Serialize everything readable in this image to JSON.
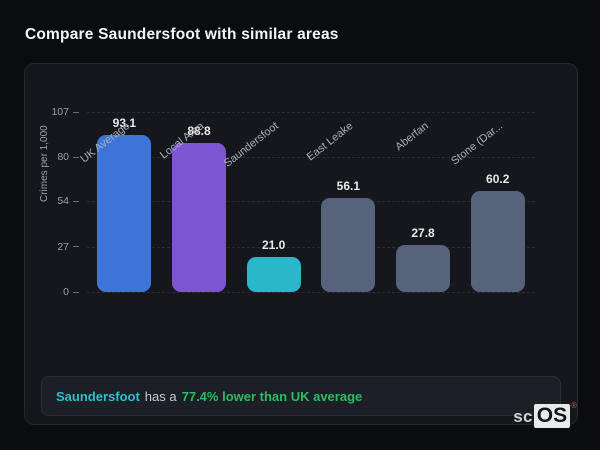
{
  "header": {
    "title": "Compare Saundersfoot with similar areas"
  },
  "chart_data": {
    "type": "bar",
    "title": "Compare Saundersfoot with similar areas",
    "xlabel": "",
    "ylabel": "Crimes per 1,000",
    "ylim": [
      0,
      107
    ],
    "yticks": [
      0,
      27,
      54,
      80,
      107
    ],
    "grid": "horizontal dashed",
    "legend": "none",
    "categories": [
      "UK Average",
      "Local Area",
      "Saundersfoot",
      "East Leake",
      "Aberfan",
      "Stone (Dar..."
    ],
    "values": [
      93.1,
      88.8,
      21.0,
      56.1,
      27.8,
      60.2
    ],
    "value_labels": [
      "93.1",
      "88.8",
      "21.0",
      "56.1",
      "27.8",
      "60.2"
    ],
    "bar_colors": [
      "#3e74d8",
      "#7c55d3",
      "#2ab7c9",
      "#57637a",
      "#57637a",
      "#57637a"
    ]
  },
  "note": {
    "area": "Saundersfoot",
    "middle": "has a",
    "highlight": "77.4% lower than UK average"
  },
  "logo": {
    "prefix": "sc",
    "suffix": "OS",
    "registered": "®"
  },
  "colors": {
    "page_bg": "#0b0c10",
    "card_bg": "#16171d",
    "accent_blue": "#3e74d8",
    "accent_purple": "#7c55d3",
    "accent_teal": "#2ab7c9",
    "neutral_bar": "#57637a",
    "highlight_green": "#2abd63"
  }
}
